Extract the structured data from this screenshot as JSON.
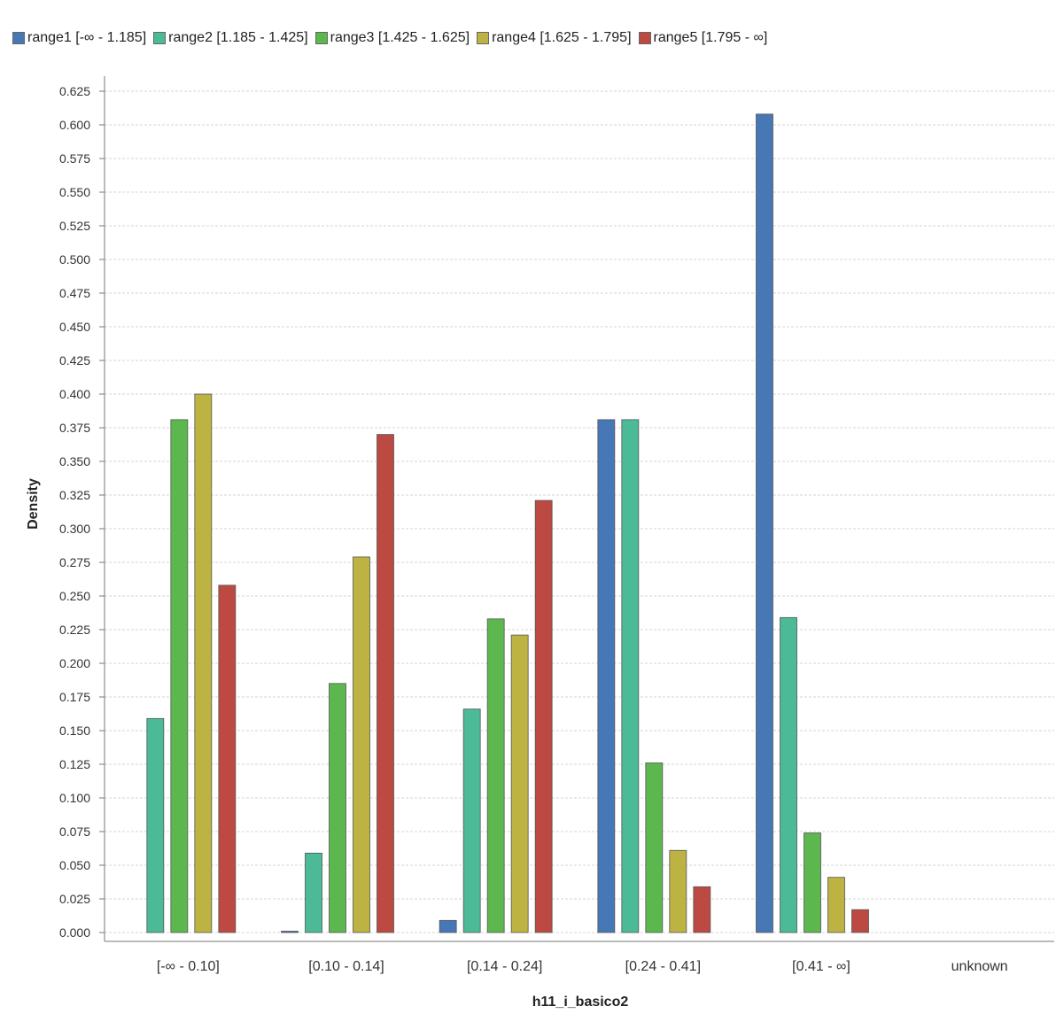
{
  "chart_data": {
    "type": "bar",
    "title": "",
    "xlabel": "h11_i_basico2",
    "ylabel": "Density",
    "ylim": [
      0,
      0.625
    ],
    "ytick_step": 0.025,
    "grid": true,
    "legend_position": "top-left",
    "categories": [
      "[-∞ - 0.10]",
      "[0.10 - 0.14]",
      "[0.14 - 0.24]",
      "[0.24 - 0.41]",
      "[0.41 - ∞]",
      "unknown"
    ],
    "series": [
      {
        "name": "range1 [-∞ - 1.185]",
        "color": "#4877b6",
        "values": [
          0.0,
          0.001,
          0.009,
          0.381,
          0.608,
          0.0
        ]
      },
      {
        "name": "range2 [1.185 - 1.425]",
        "color": "#4cba96",
        "values": [
          0.159,
          0.059,
          0.166,
          0.381,
          0.234,
          0.0
        ]
      },
      {
        "name": "range3 [1.425 - 1.625]",
        "color": "#5cb84e",
        "values": [
          0.381,
          0.185,
          0.233,
          0.126,
          0.074,
          0.0
        ]
      },
      {
        "name": "range4 [1.625 - 1.795]",
        "color": "#bcb343",
        "values": [
          0.4,
          0.279,
          0.221,
          0.061,
          0.041,
          0.0
        ]
      },
      {
        "name": "range5 [1.795 - ∞]",
        "color": "#bd4a42",
        "values": [
          0.258,
          0.37,
          0.321,
          0.034,
          0.017,
          0.0
        ]
      }
    ]
  }
}
